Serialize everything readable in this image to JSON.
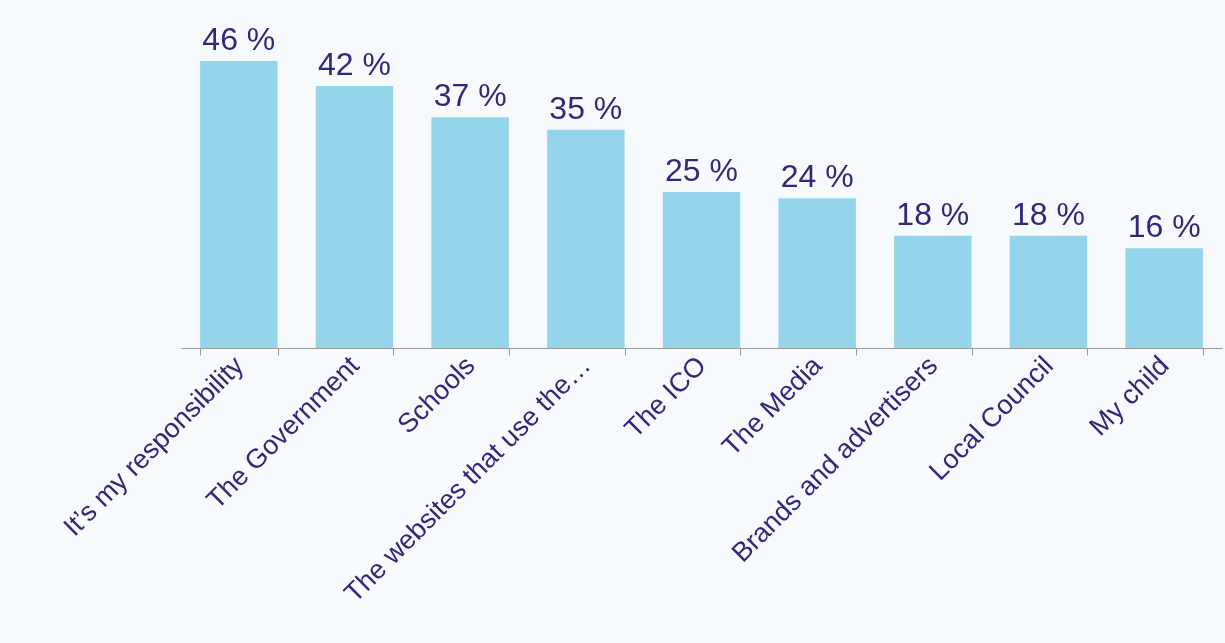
{
  "chart_data": {
    "type": "bar",
    "categories": [
      "It’s my responsibility",
      "The Government",
      "Schools",
      "The websites that use the…",
      "The ICO",
      "The Media",
      "Brands and advertisers",
      "Local Council",
      "My child"
    ],
    "values": [
      46,
      42,
      37,
      35,
      25,
      24,
      18,
      18,
      16
    ],
    "value_labels": [
      "46 %",
      "42 %",
      "37 %",
      "35 %",
      "25 %",
      "24 %",
      "18 %",
      "18 %",
      "16 %"
    ],
    "color": "#95d5ec",
    "grid": false
  }
}
